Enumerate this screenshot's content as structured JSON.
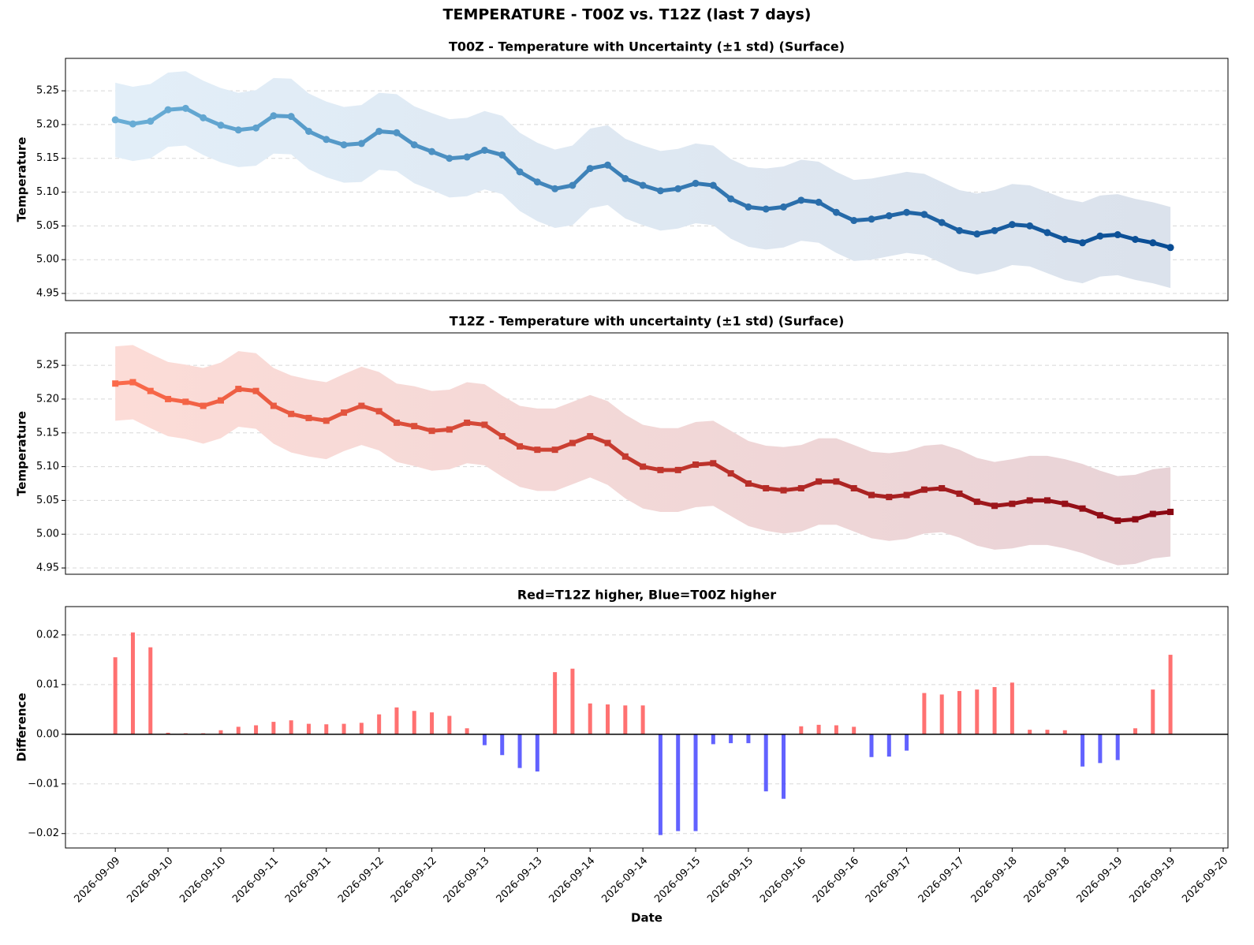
{
  "title": "TEMPERATURE - T00Z vs. T12Z (last 7 days)",
  "chart_data": [
    {
      "type": "line",
      "title": "T00Z - Temperature with Uncertainty (±1 std) (Surface)",
      "ylabel": "Temperature",
      "xlim": [
        "2026-09-09 00:40",
        "2026-09-20 01:05"
      ],
      "ylim": [
        4.9395,
        5.298
      ],
      "yticks": [
        4.95,
        {
          "value": 5.0,
          "label": "5.00"
        },
        5.05,
        {
          "value": 5.1,
          "label": "5.10"
        },
        5.15,
        {
          "value": 5.2,
          "label": "5.20"
        },
        5.25
      ],
      "grid": true,
      "marker": "circle",
      "x": [
        "2026-09-09 12:00",
        "2026-09-09 16:00",
        "2026-09-09 20:00",
        "2026-09-10 00:00",
        "2026-09-10 04:00",
        "2026-09-10 08:00",
        "2026-09-10 12:00",
        "2026-09-10 16:00",
        "2026-09-10 20:00",
        "2026-09-11 00:00",
        "2026-09-11 04:00",
        "2026-09-11 08:00",
        "2026-09-11 12:00",
        "2026-09-11 16:00",
        "2026-09-11 20:00",
        "2026-09-12 00:00",
        "2026-09-12 04:00",
        "2026-09-12 08:00",
        "2026-09-12 12:00",
        "2026-09-12 16:00",
        "2026-09-12 20:00",
        "2026-09-13 00:00",
        "2026-09-13 04:00",
        "2026-09-13 08:00",
        "2026-09-13 12:00",
        "2026-09-13 16:00",
        "2026-09-13 20:00",
        "2026-09-14 00:00",
        "2026-09-14 04:00",
        "2026-09-14 08:00",
        "2026-09-14 12:00",
        "2026-09-14 16:00",
        "2026-09-14 20:00",
        "2026-09-15 00:00",
        "2026-09-15 04:00",
        "2026-09-15 08:00",
        "2026-09-15 12:00",
        "2026-09-15 16:00",
        "2026-09-15 20:00",
        "2026-09-16 00:00",
        "2026-09-16 04:00",
        "2026-09-16 08:00",
        "2026-09-16 12:00",
        "2026-09-16 16:00",
        "2026-09-16 20:00",
        "2026-09-17 00:00",
        "2026-09-17 04:00",
        "2026-09-17 08:00",
        "2026-09-17 12:00",
        "2026-09-17 16:00",
        "2026-09-17 20:00",
        "2026-09-18 00:00",
        "2026-09-18 04:00",
        "2026-09-18 08:00",
        "2026-09-18 12:00",
        "2026-09-18 16:00",
        "2026-09-18 20:00",
        "2026-09-19 00:00",
        "2026-09-19 04:00",
        "2026-09-19 08:00",
        "2026-09-19 12:00"
      ],
      "series": [
        {
          "color": [
            "#6aaed6",
            "#084c94"
          ],
          "band_color": [
            "#e2eef8",
            "#dbe2ec"
          ],
          "values": [
            5.207,
            5.201,
            5.205,
            5.222,
            5.224,
            5.21,
            5.199,
            5.192,
            5.195,
            5.213,
            5.212,
            5.19,
            5.178,
            5.17,
            5.172,
            5.19,
            5.188,
            5.17,
            5.16,
            5.15,
            5.152,
            5.162,
            5.155,
            5.13,
            5.115,
            5.105,
            5.11,
            5.135,
            5.14,
            5.12,
            5.11,
            5.102,
            5.105,
            5.113,
            5.11,
            5.09,
            5.078,
            5.075,
            5.078,
            5.088,
            5.085,
            5.07,
            5.058,
            5.06,
            5.065,
            5.07,
            5.067,
            5.055,
            5.043,
            5.038,
            5.043,
            5.052,
            5.05,
            5.04,
            5.03,
            5.025,
            5.035,
            5.037,
            5.03,
            5.025,
            5.018
          ],
          "std": [
            0.055,
            0.055,
            0.055,
            0.055,
            0.055,
            0.055,
            0.055,
            0.055,
            0.056,
            0.056,
            0.056,
            0.056,
            0.056,
            0.056,
            0.057,
            0.057,
            0.057,
            0.057,
            0.057,
            0.058,
            0.058,
            0.058,
            0.058,
            0.058,
            0.058,
            0.058,
            0.059,
            0.059,
            0.059,
            0.059,
            0.059,
            0.059,
            0.059,
            0.059,
            0.059,
            0.059,
            0.059,
            0.06,
            0.06,
            0.06,
            0.06,
            0.06,
            0.06,
            0.06,
            0.06,
            0.06,
            0.06,
            0.06,
            0.06,
            0.06,
            0.06,
            0.06,
            0.06,
            0.06,
            0.06,
            0.06,
            0.06,
            0.06,
            0.06,
            0.06,
            0.06
          ]
        }
      ]
    },
    {
      "type": "line",
      "title": "T12Z - Temperature with uncertainty (±1 std) (Surface)",
      "ylabel": "Temperature",
      "xlim": [
        "2026-09-09 00:40",
        "2026-09-20 01:05"
      ],
      "ylim": [
        4.9407,
        5.298
      ],
      "yticks": [
        4.95,
        {
          "value": 5.0,
          "label": "5.00"
        },
        5.05,
        {
          "value": 5.1,
          "label": "5.10"
        },
        5.15,
        {
          "value": 5.2,
          "label": "5.20"
        },
        5.25
      ],
      "grid": true,
      "marker": "square",
      "x": [
        "2026-09-09 12:00",
        "2026-09-09 16:00",
        "2026-09-09 20:00",
        "2026-09-10 00:00",
        "2026-09-10 04:00",
        "2026-09-10 08:00",
        "2026-09-10 12:00",
        "2026-09-10 16:00",
        "2026-09-10 20:00",
        "2026-09-11 00:00",
        "2026-09-11 04:00",
        "2026-09-11 08:00",
        "2026-09-11 12:00",
        "2026-09-11 16:00",
        "2026-09-11 20:00",
        "2026-09-12 00:00",
        "2026-09-12 04:00",
        "2026-09-12 08:00",
        "2026-09-12 12:00",
        "2026-09-12 16:00",
        "2026-09-12 20:00",
        "2026-09-13 00:00",
        "2026-09-13 04:00",
        "2026-09-13 08:00",
        "2026-09-13 12:00",
        "2026-09-13 16:00",
        "2026-09-13 20:00",
        "2026-09-14 00:00",
        "2026-09-14 04:00",
        "2026-09-14 08:00",
        "2026-09-14 12:00",
        "2026-09-14 16:00",
        "2026-09-14 20:00",
        "2026-09-15 00:00",
        "2026-09-15 04:00",
        "2026-09-15 08:00",
        "2026-09-15 12:00",
        "2026-09-15 16:00",
        "2026-09-15 20:00",
        "2026-09-16 00:00",
        "2026-09-16 04:00",
        "2026-09-16 08:00",
        "2026-09-16 12:00",
        "2026-09-16 16:00",
        "2026-09-16 20:00",
        "2026-09-17 00:00",
        "2026-09-17 04:00",
        "2026-09-17 08:00",
        "2026-09-17 12:00",
        "2026-09-17 16:00",
        "2026-09-17 20:00",
        "2026-09-18 00:00",
        "2026-09-18 04:00",
        "2026-09-18 08:00",
        "2026-09-18 12:00",
        "2026-09-18 16:00",
        "2026-09-18 20:00",
        "2026-09-19 00:00",
        "2026-09-19 04:00",
        "2026-09-19 08:00",
        "2026-09-19 12:00"
      ],
      "series": [
        {
          "color": [
            "#fb6a4a",
            "#8a0612"
          ],
          "band_color": [
            "#fcdcd7",
            "#e8d3d7"
          ],
          "values": [
            5.223,
            5.225,
            5.212,
            5.2,
            5.196,
            5.19,
            5.198,
            5.215,
            5.212,
            5.19,
            5.178,
            5.172,
            5.168,
            5.18,
            5.19,
            5.182,
            5.165,
            5.16,
            5.153,
            5.155,
            5.165,
            5.162,
            5.145,
            5.13,
            5.125,
            5.125,
            5.135,
            5.145,
            5.135,
            5.115,
            5.1,
            5.095,
            5.095,
            5.103,
            5.105,
            5.09,
            5.075,
            5.068,
            5.065,
            5.068,
            5.078,
            5.078,
            5.068,
            5.058,
            5.055,
            5.058,
            5.066,
            5.068,
            5.06,
            5.048,
            5.042,
            5.045,
            5.05,
            5.05,
            5.045,
            5.038,
            5.028,
            5.02,
            5.022,
            5.03,
            5.033
          ],
          "std": [
            0.055,
            0.055,
            0.055,
            0.055,
            0.055,
            0.056,
            0.056,
            0.056,
            0.056,
            0.056,
            0.057,
            0.057,
            0.057,
            0.057,
            0.058,
            0.058,
            0.058,
            0.059,
            0.059,
            0.059,
            0.06,
            0.06,
            0.06,
            0.06,
            0.061,
            0.061,
            0.061,
            0.061,
            0.062,
            0.062,
            0.062,
            0.062,
            0.062,
            0.063,
            0.063,
            0.063,
            0.063,
            0.063,
            0.064,
            0.064,
            0.064,
            0.064,
            0.064,
            0.064,
            0.065,
            0.065,
            0.065,
            0.065,
            0.065,
            0.065,
            0.065,
            0.066,
            0.066,
            0.066,
            0.066,
            0.066,
            0.066,
            0.066,
            0.066,
            0.066,
            0.066
          ]
        }
      ]
    },
    {
      "type": "bar",
      "title": "Red=T12Z higher, Blue=T00Z higher",
      "ylabel": "Difference",
      "xlabel": "Date",
      "xlim": [
        "2026-09-09 00:40",
        "2026-09-20 01:05"
      ],
      "ylim": [
        -0.0229,
        0.0257
      ],
      "yticks": [
        {
          "value": -0.02,
          "label": "−0.02"
        },
        {
          "value": -0.01,
          "label": "−0.01"
        },
        {
          "value": 0,
          "label": "0.00"
        },
        0.01,
        0.02
      ],
      "xticks": [
        {
          "value": "2026-09-09 12:00",
          "label": "2026-09-09"
        },
        {
          "value": "2026-09-10 00:00",
          "label": "2026-09-10"
        },
        {
          "value": "2026-09-10 12:00",
          "label": "2026-09-10"
        },
        {
          "value": "2026-09-11 00:00",
          "label": "2026-09-11"
        },
        {
          "value": "2026-09-11 12:00",
          "label": "2026-09-11"
        },
        {
          "value": "2026-09-12 00:00",
          "label": "2026-09-12"
        },
        {
          "value": "2026-09-12 12:00",
          "label": "2026-09-12"
        },
        {
          "value": "2026-09-13 00:00",
          "label": "2026-09-13"
        },
        {
          "value": "2026-09-13 12:00",
          "label": "2026-09-13"
        },
        {
          "value": "2026-09-14 00:00",
          "label": "2026-09-14"
        },
        {
          "value": "2026-09-14 12:00",
          "label": "2026-09-14"
        },
        {
          "value": "2026-09-15 00:00",
          "label": "2026-09-15"
        },
        {
          "value": "2026-09-15 12:00",
          "label": "2026-09-15"
        },
        {
          "value": "2026-09-16 00:00",
          "label": "2026-09-16"
        },
        {
          "value": "2026-09-16 12:00",
          "label": "2026-09-16"
        },
        {
          "value": "2026-09-17 00:00",
          "label": "2026-09-17"
        },
        {
          "value": "2026-09-17 12:00",
          "label": "2026-09-17"
        },
        {
          "value": "2026-09-18 00:00",
          "label": "2026-09-18"
        },
        {
          "value": "2026-09-18 12:00",
          "label": "2026-09-18"
        },
        {
          "value": "2026-09-19 00:00",
          "label": "2026-09-19"
        },
        {
          "value": "2026-09-19 12:00",
          "label": "2026-09-19"
        },
        {
          "value": "2026-09-20 00:00",
          "label": "2026-09-20"
        }
      ],
      "grid": true,
      "positive_color": "#ff4d4d",
      "negative_color": "#3b3bff",
      "x": [
        "2026-09-09 12:00",
        "2026-09-09 16:00",
        "2026-09-09 20:00",
        "2026-09-10 00:00",
        "2026-09-10 04:00",
        "2026-09-10 08:00",
        "2026-09-10 12:00",
        "2026-09-10 16:00",
        "2026-09-10 20:00",
        "2026-09-11 00:00",
        "2026-09-11 04:00",
        "2026-09-11 08:00",
        "2026-09-11 12:00",
        "2026-09-11 16:00",
        "2026-09-11 20:00",
        "2026-09-12 00:00",
        "2026-09-12 04:00",
        "2026-09-12 08:00",
        "2026-09-12 12:00",
        "2026-09-12 16:00",
        "2026-09-12 20:00",
        "2026-09-13 00:00",
        "2026-09-13 04:00",
        "2026-09-13 08:00",
        "2026-09-13 12:00",
        "2026-09-13 16:00",
        "2026-09-13 20:00",
        "2026-09-14 00:00",
        "2026-09-14 04:00",
        "2026-09-14 08:00",
        "2026-09-14 12:00",
        "2026-09-14 16:00",
        "2026-09-14 20:00",
        "2026-09-15 00:00",
        "2026-09-15 04:00",
        "2026-09-15 08:00",
        "2026-09-15 12:00",
        "2026-09-15 16:00",
        "2026-09-15 20:00",
        "2026-09-16 00:00",
        "2026-09-16 04:00",
        "2026-09-16 08:00",
        "2026-09-16 12:00",
        "2026-09-16 16:00",
        "2026-09-16 20:00",
        "2026-09-17 00:00",
        "2026-09-17 04:00",
        "2026-09-17 08:00",
        "2026-09-17 12:00",
        "2026-09-17 16:00",
        "2026-09-17 20:00",
        "2026-09-18 00:00",
        "2026-09-18 04:00",
        "2026-09-18 08:00",
        "2026-09-18 12:00",
        "2026-09-18 16:00",
        "2026-09-18 20:00",
        "2026-09-19 00:00",
        "2026-09-19 04:00",
        "2026-09-19 08:00",
        "2026-09-19 12:00"
      ],
      "values": [
        0.0155,
        0.0205,
        0.0175,
        0.0003,
        0.0002,
        0.0002,
        0.0008,
        0.0015,
        0.0018,
        0.0025,
        0.0028,
        0.0021,
        0.002,
        0.0021,
        0.0023,
        0.004,
        0.0054,
        0.0047,
        0.0044,
        0.0037,
        0.0012,
        -0.0022,
        -0.0042,
        -0.0068,
        -0.0075,
        0.0125,
        0.0132,
        0.0062,
        0.006,
        0.0058,
        0.0058,
        -0.0203,
        -0.0195,
        -0.0195,
        -0.002,
        -0.0018,
        -0.0018,
        -0.0115,
        -0.013,
        0.0016,
        0.0019,
        0.0018,
        0.0015,
        -0.0046,
        -0.0045,
        -0.0033,
        0.0083,
        0.008,
        0.0087,
        0.009,
        0.0095,
        0.0104,
        0.0009,
        0.0009,
        0.0008,
        -0.0065,
        -0.0058,
        -0.0052,
        0.0012,
        0.009,
        0.016
      ]
    }
  ]
}
